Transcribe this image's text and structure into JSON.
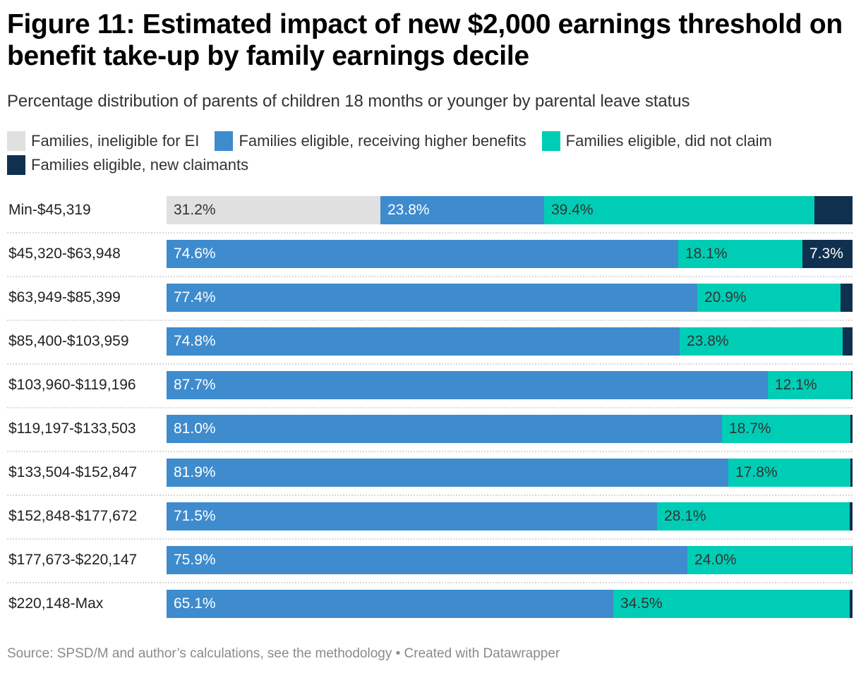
{
  "chart_data": {
    "type": "bar",
    "orientation": "horizontal",
    "stacked": true,
    "title": "Figure 11: Estimated impact of new $2,000 earnings threshold on benefit take-up by family earnings decile",
    "subtitle": "Percentage distribution of parents of children 18 months or younger by parental leave status",
    "xlabel": "",
    "ylabel": "",
    "xlim": [
      0,
      100
    ],
    "legend_position": "top",
    "categories": [
      "Min-$45,319",
      "$45,320-$63,948",
      "$63,949-$85,399",
      "$85,400-$103,959",
      "$103,960-$119,196",
      "$119,197-$133,503",
      "$133,504-$152,847",
      "$152,848-$177,672",
      "$177,673-$220,147",
      "$220,148-Max"
    ],
    "series": [
      {
        "name": "Families, ineligible for EI",
        "color": "#e0e0e0",
        "label_color": "#333333",
        "values": [
          31.2,
          0,
          0,
          0,
          0,
          0,
          0,
          0,
          0,
          0
        ],
        "labels": [
          "31.2%",
          "",
          "",
          "",
          "",
          "",
          "",
          "",
          "",
          ""
        ]
      },
      {
        "name": "Families eligible, receiving higher benefits",
        "color": "#3e8bce",
        "label_color": "#ffffff",
        "values": [
          23.8,
          74.6,
          77.4,
          74.8,
          87.7,
          81.0,
          81.9,
          71.5,
          75.9,
          65.1
        ],
        "labels": [
          "23.8%",
          "74.6%",
          "77.4%",
          "74.8%",
          "87.7%",
          "81.0%",
          "81.9%",
          "71.5%",
          "75.9%",
          "65.1%"
        ]
      },
      {
        "name": "Families eligible, did not claim",
        "color": "#00cdb5",
        "label_color": "#333333",
        "values": [
          39.4,
          18.1,
          20.9,
          23.8,
          12.1,
          18.7,
          17.8,
          28.1,
          24.0,
          34.5
        ],
        "labels": [
          "39.4%",
          "18.1%",
          "20.9%",
          "23.8%",
          "12.1%",
          "18.7%",
          "17.8%",
          "28.1%",
          "24.0%",
          "34.5%"
        ]
      },
      {
        "name": "Families eligible, new claimants",
        "color": "#10304f",
        "label_color": "#ffffff",
        "values": [
          5.6,
          7.3,
          1.7,
          1.4,
          0.2,
          0.3,
          0.3,
          0.4,
          0.1,
          0.4
        ],
        "labels": [
          "",
          "7.3%",
          "",
          "",
          "",
          "",
          "",
          "",
          "",
          ""
        ]
      }
    ]
  },
  "footer": {
    "source": "Source: SPSD/M and author’s calculations, see the methodology • Created with Datawrapper"
  }
}
